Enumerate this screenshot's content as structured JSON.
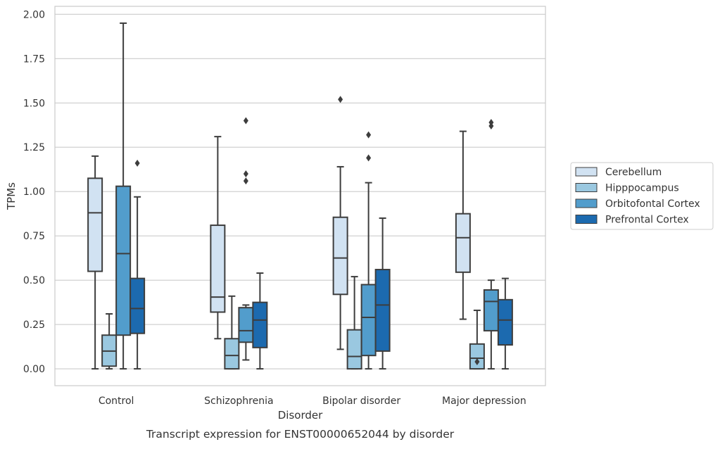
{
  "chart_data": {
    "type": "box",
    "caption": "Transcript expression for ENST00000652044 by disorder",
    "xlabel": "Disorder",
    "ylabel": "TPMs",
    "ylim": [
      -0.095,
      2.045
    ],
    "yticks": [
      "0.00",
      "0.25",
      "0.50",
      "0.75",
      "1.00",
      "1.25",
      "1.50",
      "1.75",
      "2.00"
    ],
    "grid": "horizontal",
    "legend_position": "right",
    "categories": [
      "Control",
      "Schizophrenia",
      "Bipolar disorder",
      "Major depression"
    ],
    "series": [
      {
        "name": "Cerebellum",
        "color": "#d1e2f2",
        "boxes": [
          {
            "whislo": 0.0,
            "q1": 0.55,
            "med": 0.88,
            "q3": 1.075,
            "whishi": 1.2,
            "fliers": []
          },
          {
            "whislo": 0.17,
            "q1": 0.32,
            "med": 0.405,
            "q3": 0.81,
            "whishi": 1.31,
            "fliers": []
          },
          {
            "whislo": 0.11,
            "q1": 0.42,
            "med": 0.625,
            "q3": 0.855,
            "whishi": 1.14,
            "fliers": [
              1.52
            ]
          },
          {
            "whislo": 0.28,
            "q1": 0.545,
            "med": 0.74,
            "q3": 0.875,
            "whishi": 1.34,
            "fliers": []
          }
        ]
      },
      {
        "name": "Hipppocampus",
        "color": "#9ac8e0",
        "boxes": [
          {
            "whislo": 0.0,
            "q1": 0.015,
            "med": 0.1,
            "q3": 0.19,
            "whishi": 0.31,
            "fliers": []
          },
          {
            "whislo": 0.0,
            "q1": 0.0,
            "med": 0.075,
            "q3": 0.17,
            "whishi": 0.41,
            "fliers": []
          },
          {
            "whislo": 0.0,
            "q1": 0.0,
            "med": 0.07,
            "q3": 0.22,
            "whishi": 0.52,
            "fliers": []
          },
          {
            "whislo": 0.0,
            "q1": 0.0,
            "med": 0.06,
            "q3": 0.14,
            "whishi": 0.33,
            "fliers": [
              0.04
            ]
          }
        ]
      },
      {
        "name": "Orbitofontal Cortex",
        "color": "#529dcc",
        "boxes": [
          {
            "whislo": 0.0,
            "q1": 0.19,
            "med": 0.65,
            "q3": 1.03,
            "whishi": 1.95,
            "fliers": []
          },
          {
            "whislo": 0.05,
            "q1": 0.15,
            "med": 0.215,
            "q3": 0.345,
            "whishi": 0.36,
            "fliers": [
              1.06,
              1.1,
              1.4
            ]
          },
          {
            "whislo": 0.0,
            "q1": 0.075,
            "med": 0.29,
            "q3": 0.475,
            "whishi": 1.05,
            "fliers": [
              1.19,
              1.32
            ]
          },
          {
            "whislo": 0.0,
            "q1": 0.215,
            "med": 0.38,
            "q3": 0.445,
            "whishi": 0.5,
            "fliers": [
              1.37,
              1.39
            ]
          }
        ]
      },
      {
        "name": "Prefrontal Cortex",
        "color": "#1c6aaf",
        "boxes": [
          {
            "whislo": 0.0,
            "q1": 0.2,
            "med": 0.34,
            "q3": 0.51,
            "whishi": 0.97,
            "fliers": [
              1.16
            ]
          },
          {
            "whislo": 0.0,
            "q1": 0.12,
            "med": 0.275,
            "q3": 0.375,
            "whishi": 0.54,
            "fliers": []
          },
          {
            "whislo": 0.0,
            "q1": 0.1,
            "med": 0.36,
            "q3": 0.56,
            "whishi": 0.85,
            "fliers": []
          },
          {
            "whislo": 0.0,
            "q1": 0.135,
            "med": 0.275,
            "q3": 0.39,
            "whishi": 0.51,
            "fliers": []
          }
        ]
      }
    ]
  }
}
